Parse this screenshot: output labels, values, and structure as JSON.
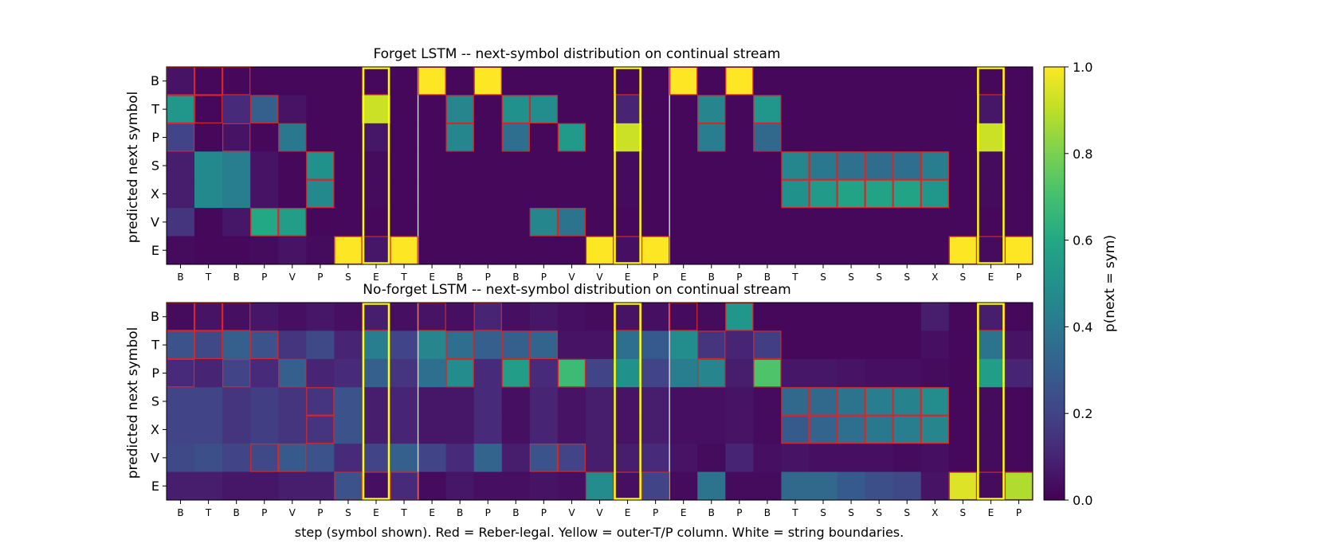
{
  "chart_data": {
    "type": "heatmap",
    "xlabel": "step (symbol shown). Red = Reber-legal. Yellow = outer-T/P column. White = string boundaries.",
    "x_tick_labels": [
      "B",
      "T",
      "B",
      "P",
      "V",
      "P",
      "S",
      "E",
      "T",
      "E",
      "B",
      "P",
      "B",
      "P",
      "V",
      "V",
      "E",
      "P",
      "E",
      "B",
      "P",
      "B",
      "T",
      "S",
      "S",
      "S",
      "S",
      "X",
      "S",
      "E",
      "P"
    ],
    "y_tick_labels": [
      "B",
      "T",
      "P",
      "S",
      "X",
      "V",
      "E"
    ],
    "outer_tp_columns": [
      7,
      16,
      29
    ],
    "string_boundaries_after": [
      8,
      17
    ],
    "colorbar": {
      "label": "p(next = sym)",
      "range": [
        0.0,
        1.0
      ],
      "ticks": [
        "0.0",
        "0.2",
        "0.4",
        "0.6",
        "0.8",
        "1.0"
      ],
      "colormap": "viridis"
    },
    "colors": {
      "legal_outline": "#d62728",
      "outer_column_outline": "#ffff00",
      "boundary_line": "#cfcfd8"
    },
    "panels": [
      {
        "title": "Forget LSTM -- next-symbol distribution on continual stream",
        "ylabel": "predicted next symbol",
        "values": [
          [
            0.05,
            0.02,
            0.02,
            0.02,
            0.02,
            0.02,
            0.02,
            0.02,
            0.02,
            1.0,
            0.02,
            1.0,
            0.02,
            0.02,
            0.02,
            0.02,
            0.02,
            0.02,
            1.0,
            0.02,
            1.0,
            0.02,
            0.02,
            0.02,
            0.02,
            0.02,
            0.02,
            0.02,
            0.02,
            0.02,
            0.02
          ],
          [
            0.52,
            0.02,
            0.12,
            0.3,
            0.05,
            0.02,
            0.02,
            0.92,
            0.02,
            0.02,
            0.45,
            0.02,
            0.5,
            0.48,
            0.02,
            0.02,
            0.1,
            0.02,
            0.02,
            0.45,
            0.02,
            0.52,
            0.02,
            0.02,
            0.02,
            0.02,
            0.02,
            0.02,
            0.02,
            0.06,
            0.02
          ],
          [
            0.2,
            0.02,
            0.05,
            0.02,
            0.4,
            0.02,
            0.02,
            0.06,
            0.02,
            0.02,
            0.46,
            0.02,
            0.36,
            0.02,
            0.54,
            0.02,
            0.92,
            0.02,
            0.02,
            0.42,
            0.02,
            0.34,
            0.02,
            0.02,
            0.02,
            0.02,
            0.02,
            0.02,
            0.02,
            0.92,
            0.02
          ],
          [
            0.08,
            0.47,
            0.42,
            0.05,
            0.02,
            0.5,
            0.02,
            0.03,
            0.02,
            0.02,
            0.02,
            0.02,
            0.02,
            0.02,
            0.02,
            0.02,
            0.03,
            0.02,
            0.02,
            0.02,
            0.02,
            0.02,
            0.46,
            0.4,
            0.37,
            0.35,
            0.36,
            0.42,
            0.02,
            0.03,
            0.02
          ],
          [
            0.08,
            0.47,
            0.42,
            0.05,
            0.02,
            0.47,
            0.02,
            0.03,
            0.02,
            0.02,
            0.02,
            0.02,
            0.02,
            0.02,
            0.02,
            0.02,
            0.03,
            0.02,
            0.02,
            0.02,
            0.02,
            0.02,
            0.5,
            0.54,
            0.58,
            0.58,
            0.58,
            0.52,
            0.02,
            0.03,
            0.02
          ],
          [
            0.15,
            0.02,
            0.06,
            0.6,
            0.55,
            0.02,
            0.02,
            0.02,
            0.02,
            0.02,
            0.02,
            0.02,
            0.02,
            0.46,
            0.38,
            0.02,
            0.02,
            0.02,
            0.02,
            0.02,
            0.02,
            0.02,
            0.02,
            0.02,
            0.02,
            0.02,
            0.02,
            0.02,
            0.02,
            0.02,
            0.02
          ],
          [
            0.03,
            0.02,
            0.02,
            0.03,
            0.05,
            0.03,
            1.0,
            0.06,
            1.0,
            0.02,
            0.02,
            0.02,
            0.02,
            0.02,
            0.02,
            1.0,
            0.04,
            1.0,
            0.02,
            0.02,
            0.02,
            0.02,
            0.02,
            0.02,
            0.02,
            0.02,
            0.02,
            0.02,
            1.0,
            0.03,
            1.0
          ]
        ],
        "legal_cells": [
          [
            0,
            0
          ],
          [
            1,
            0
          ],
          [
            2,
            0
          ],
          [
            0,
            1
          ],
          [
            1,
            1
          ],
          [
            0,
            2
          ],
          [
            2,
            2
          ],
          [
            3,
            1
          ],
          [
            3,
            5
          ],
          [
            4,
            2
          ],
          [
            4,
            5
          ],
          [
            5,
            3
          ],
          [
            5,
            4
          ],
          [
            6,
            6
          ],
          [
            7,
            0
          ],
          [
            7,
            6
          ],
          [
            8,
            6
          ],
          [
            9,
            0
          ],
          [
            10,
            1
          ],
          [
            10,
            2
          ],
          [
            11,
            0
          ],
          [
            12,
            1
          ],
          [
            12,
            2
          ],
          [
            13,
            1
          ],
          [
            13,
            5
          ],
          [
            14,
            2
          ],
          [
            14,
            5
          ],
          [
            15,
            6
          ],
          [
            16,
            0
          ],
          [
            16,
            6
          ],
          [
            17,
            6
          ],
          [
            18,
            0
          ],
          [
            19,
            1
          ],
          [
            19,
            2
          ],
          [
            20,
            0
          ],
          [
            21,
            1
          ],
          [
            21,
            2
          ],
          [
            22,
            3
          ],
          [
            22,
            4
          ],
          [
            23,
            3
          ],
          [
            23,
            4
          ],
          [
            24,
            3
          ],
          [
            24,
            4
          ],
          [
            25,
            3
          ],
          [
            25,
            4
          ],
          [
            26,
            3
          ],
          [
            26,
            4
          ],
          [
            27,
            3
          ],
          [
            27,
            4
          ],
          [
            28,
            6
          ],
          [
            29,
            0
          ],
          [
            29,
            6
          ],
          [
            30,
            6
          ]
        ]
      },
      {
        "title": "No-forget LSTM -- next-symbol distribution on continual stream",
        "ylabel": "predicted next symbol",
        "values": [
          [
            0.03,
            0.05,
            0.04,
            0.06,
            0.04,
            0.06,
            0.04,
            0.08,
            0.04,
            0.05,
            0.04,
            0.1,
            0.04,
            0.06,
            0.04,
            0.03,
            0.05,
            0.04,
            0.03,
            0.03,
            0.52,
            0.02,
            0.02,
            0.02,
            0.02,
            0.02,
            0.02,
            0.08,
            0.02,
            0.08,
            0.02
          ],
          [
            0.25,
            0.22,
            0.3,
            0.25,
            0.15,
            0.22,
            0.1,
            0.42,
            0.2,
            0.45,
            0.36,
            0.3,
            0.3,
            0.32,
            0.05,
            0.05,
            0.36,
            0.28,
            0.48,
            0.15,
            0.1,
            0.18,
            0.02,
            0.02,
            0.02,
            0.02,
            0.02,
            0.04,
            0.02,
            0.38,
            0.05
          ],
          [
            0.12,
            0.1,
            0.2,
            0.12,
            0.3,
            0.1,
            0.12,
            0.3,
            0.15,
            0.36,
            0.48,
            0.12,
            0.55,
            0.12,
            0.68,
            0.2,
            0.5,
            0.2,
            0.42,
            0.45,
            0.08,
            0.72,
            0.06,
            0.06,
            0.05,
            0.04,
            0.04,
            0.03,
            0.02,
            0.55,
            0.1
          ],
          [
            0.2,
            0.2,
            0.15,
            0.18,
            0.15,
            0.15,
            0.25,
            0.08,
            0.1,
            0.06,
            0.06,
            0.12,
            0.04,
            0.1,
            0.05,
            0.08,
            0.05,
            0.08,
            0.04,
            0.04,
            0.05,
            0.03,
            0.34,
            0.34,
            0.38,
            0.42,
            0.44,
            0.48,
            0.02,
            0.03,
            0.02
          ],
          [
            0.2,
            0.2,
            0.15,
            0.18,
            0.15,
            0.15,
            0.25,
            0.08,
            0.1,
            0.06,
            0.06,
            0.12,
            0.04,
            0.1,
            0.05,
            0.08,
            0.05,
            0.08,
            0.04,
            0.04,
            0.05,
            0.03,
            0.28,
            0.32,
            0.36,
            0.4,
            0.42,
            0.45,
            0.02,
            0.03,
            0.02
          ],
          [
            0.22,
            0.24,
            0.2,
            0.22,
            0.28,
            0.25,
            0.12,
            0.2,
            0.3,
            0.2,
            0.12,
            0.32,
            0.08,
            0.26,
            0.2,
            0.08,
            0.08,
            0.12,
            0.05,
            0.03,
            0.1,
            0.04,
            0.05,
            0.04,
            0.04,
            0.04,
            0.03,
            0.04,
            0.02,
            0.03,
            0.02
          ],
          [
            0.08,
            0.08,
            0.06,
            0.06,
            0.08,
            0.08,
            0.25,
            0.04,
            0.12,
            0.03,
            0.06,
            0.04,
            0.04,
            0.05,
            0.04,
            0.48,
            0.04,
            0.2,
            0.03,
            0.38,
            0.03,
            0.03,
            0.34,
            0.34,
            0.28,
            0.24,
            0.22,
            0.05,
            0.95,
            0.03,
            0.88
          ]
        ],
        "legal_cells": [
          [
            0,
            0
          ],
          [
            1,
            0
          ],
          [
            2,
            0
          ],
          [
            0,
            1
          ],
          [
            1,
            1
          ],
          [
            0,
            2
          ],
          [
            2,
            2
          ],
          [
            3,
            1
          ],
          [
            3,
            5
          ],
          [
            4,
            2
          ],
          [
            4,
            5
          ],
          [
            5,
            3
          ],
          [
            5,
            4
          ],
          [
            6,
            6
          ],
          [
            7,
            0
          ],
          [
            7,
            6
          ],
          [
            8,
            6
          ],
          [
            9,
            0
          ],
          [
            10,
            1
          ],
          [
            10,
            2
          ],
          [
            11,
            0
          ],
          [
            12,
            1
          ],
          [
            12,
            2
          ],
          [
            13,
            1
          ],
          [
            13,
            5
          ],
          [
            14,
            2
          ],
          [
            14,
            5
          ],
          [
            15,
            6
          ],
          [
            16,
            0
          ],
          [
            16,
            6
          ],
          [
            17,
            6
          ],
          [
            18,
            0
          ],
          [
            19,
            1
          ],
          [
            19,
            2
          ],
          [
            20,
            0
          ],
          [
            21,
            1
          ],
          [
            21,
            2
          ],
          [
            22,
            3
          ],
          [
            22,
            4
          ],
          [
            23,
            3
          ],
          [
            23,
            4
          ],
          [
            24,
            3
          ],
          [
            24,
            4
          ],
          [
            25,
            3
          ],
          [
            25,
            4
          ],
          [
            26,
            3
          ],
          [
            26,
            4
          ],
          [
            27,
            3
          ],
          [
            27,
            4
          ],
          [
            28,
            6
          ],
          [
            29,
            0
          ],
          [
            29,
            6
          ],
          [
            30,
            6
          ]
        ]
      }
    ]
  }
}
